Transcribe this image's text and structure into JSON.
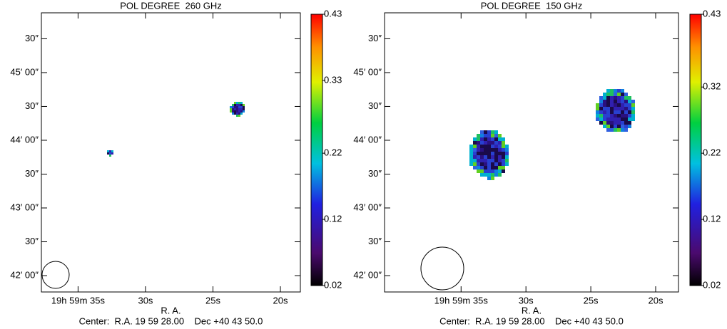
{
  "chart_data": [
    {
      "type": "image",
      "title": "POL DEGREE  260 GHz",
      "xlabel": "R. A.",
      "subtitle": "Center:  R.A. 19 59 28.00    Dec +40 43 50.0",
      "xlim": [
        37.72,
        18.52
      ],
      "xticks": [
        {
          "value": 35,
          "label": "19h 59m 35s"
        },
        {
          "value": 30,
          "label": "30s"
        },
        {
          "value": 25,
          "label": "25s"
        },
        {
          "value": 20,
          "label": "20s"
        }
      ],
      "ylim": [
        -14.5,
        233
      ],
      "yticks": [
        {
          "value": 0,
          "label": "42′ 00″"
        },
        {
          "value": 30,
          "label": "30″"
        },
        {
          "value": 60,
          "label": "43′ 00″"
        },
        {
          "value": 90,
          "label": "30″"
        },
        {
          "value": 120,
          "label": "44′ 00″"
        },
        {
          "value": 150,
          "label": "30″"
        },
        {
          "value": 180,
          "label": "45′ 00″"
        },
        {
          "value": 210,
          "label": "30″"
        }
      ],
      "clim": [
        0.02,
        0.43
      ],
      "cticks": [
        0.02,
        0.12,
        0.22,
        0.33,
        0.43
      ]
    },
    {
      "type": "image",
      "title": "POL DEGREE  150 GHz",
      "xlabel": "R. A.",
      "subtitle": "Center:  R.A. 19 59 28.00    Dec +40 43 50.0",
      "xlim": [
        40.9,
        18.24
      ],
      "xticks": [
        {
          "value": 35,
          "label": "19h 59m 35s"
        },
        {
          "value": 30,
          "label": "30s"
        },
        {
          "value": 25,
          "label": "25s"
        },
        {
          "value": 20,
          "label": "20s"
        }
      ],
      "ylim": [
        -14.5,
        233
      ],
      "yticks": [
        {
          "value": 0,
          "label": "42′ 00″"
        },
        {
          "value": 30,
          "label": "30″"
        },
        {
          "value": 60,
          "label": "43′ 00″"
        },
        {
          "value": 90,
          "label": "30″"
        },
        {
          "value": 120,
          "label": "44′ 00″"
        },
        {
          "value": 150,
          "label": "30″"
        },
        {
          "value": 180,
          "label": "45′ 00″"
        },
        {
          "value": 210,
          "label": "30″"
        }
      ],
      "clim": [
        0.02,
        0.43
      ],
      "cticks": [
        0.02,
        0.12,
        0.22,
        0.32,
        0.43
      ]
    }
  ]
}
